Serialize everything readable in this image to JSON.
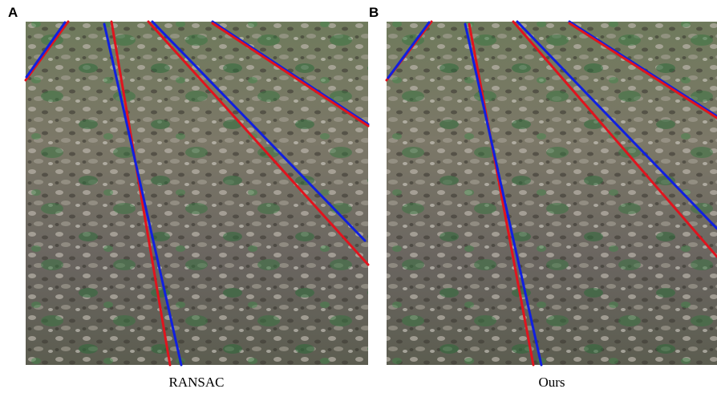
{
  "panels": [
    {
      "label": "A",
      "caption": "RANSAC"
    },
    {
      "label": "B",
      "caption": "Ours"
    }
  ]
}
